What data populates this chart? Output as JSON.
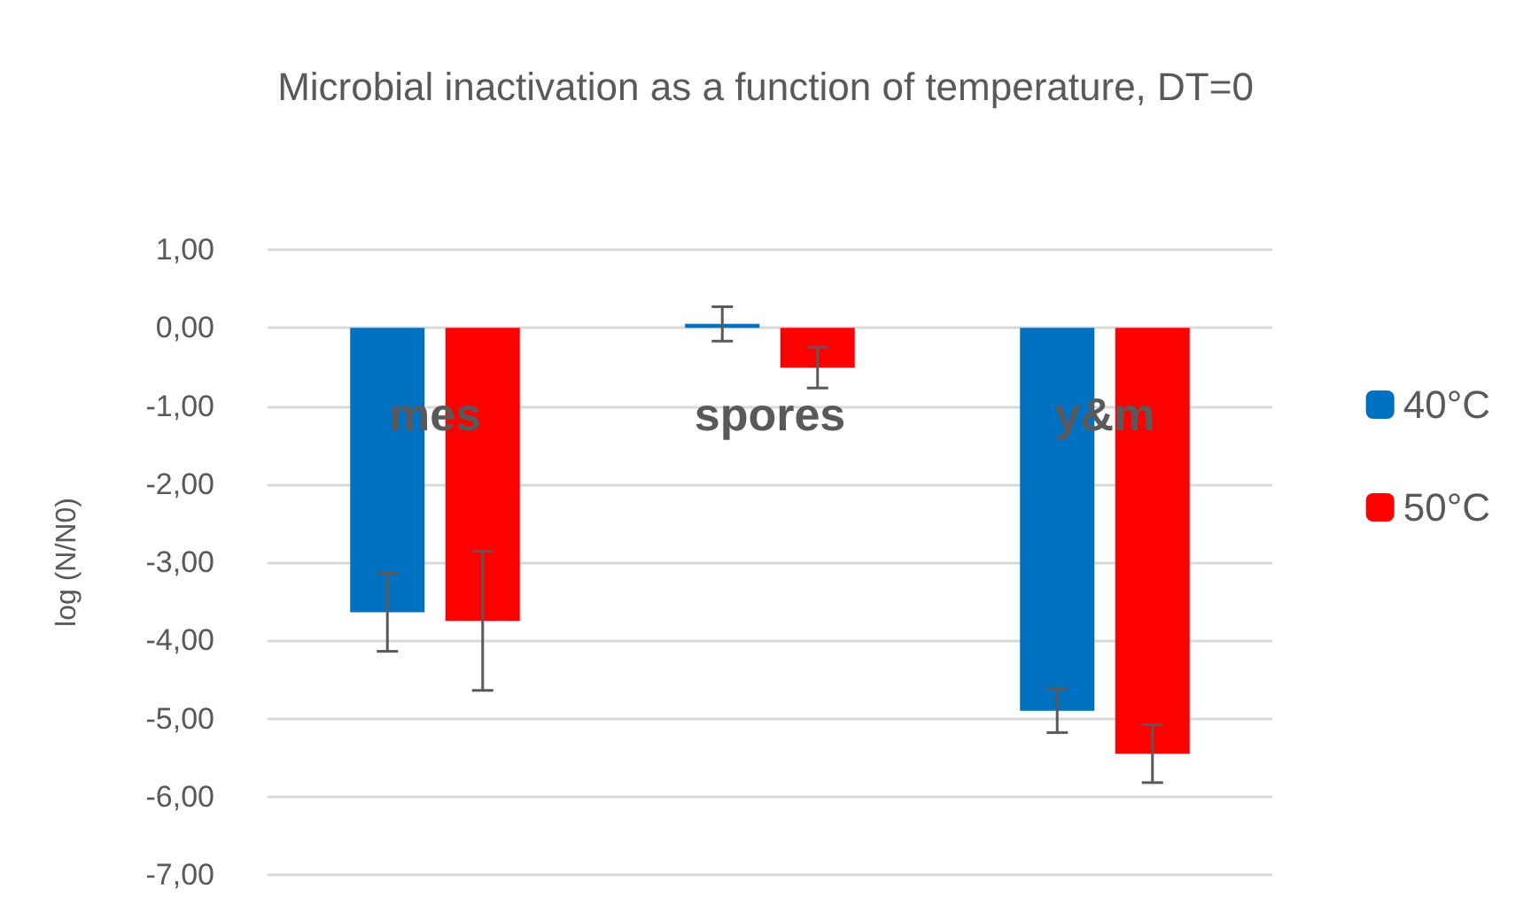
{
  "chart_data": {
    "type": "bar",
    "title": "Microbial inactivation as a function of temperature, DT=0",
    "ylabel": "log (N/N0)",
    "categories": [
      "mes",
      "spores",
      "y&m"
    ],
    "series": [
      {
        "name": "40°C",
        "color": "#0070c0",
        "values": [
          -3.64,
          0.05,
          -4.9
        ],
        "errors": [
          0.5,
          0.22,
          0.28
        ]
      },
      {
        "name": "50°C",
        "color": "#ff0000",
        "values": [
          -3.75,
          -0.51,
          -5.45
        ],
        "errors": [
          0.89,
          0.26,
          0.37
        ]
      }
    ],
    "ylim": [
      -7,
      1
    ],
    "yticks": [
      {
        "value": -7,
        "label": "-7,00"
      },
      {
        "value": -6,
        "label": "-6,00"
      },
      {
        "value": -5,
        "label": "-5,00"
      },
      {
        "value": -4,
        "label": "-4,00"
      },
      {
        "value": -3,
        "label": "-3,00"
      },
      {
        "value": -2,
        "label": "-2,00"
      },
      {
        "value": -1,
        "label": "-1,00"
      },
      {
        "value": 0,
        "label": "0,00"
      },
      {
        "value": 1,
        "label": "1,00"
      }
    ],
    "grid": "y",
    "legend": "right"
  }
}
